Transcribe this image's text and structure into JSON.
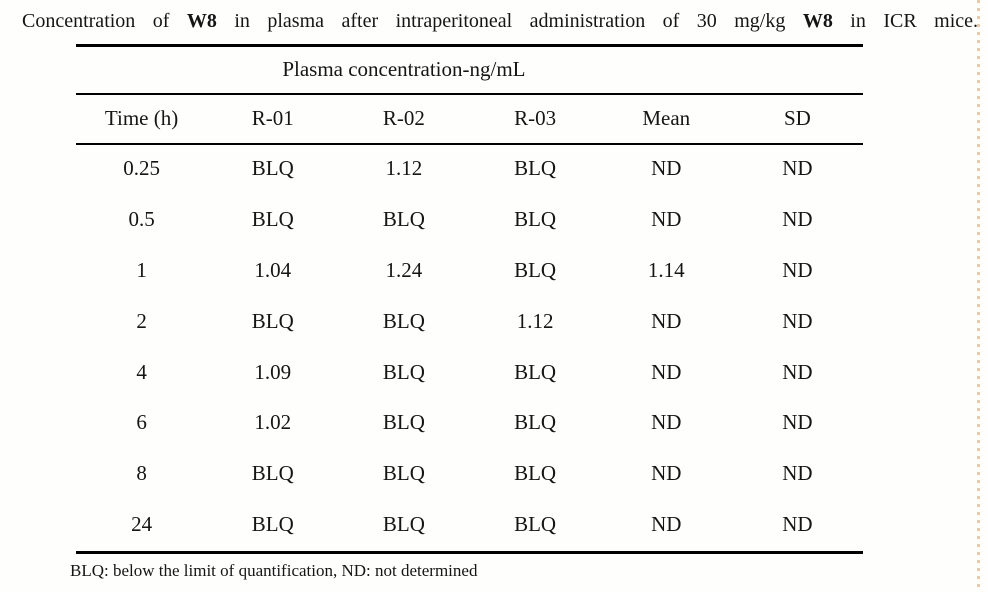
{
  "caption": {
    "segments": [
      "Concentration of ",
      "W8",
      " in plasma after intraperitoneal administration of 30 mg/kg ",
      "W8",
      " in ICR mice."
    ]
  },
  "table": {
    "group_header": "Plasma concentration-ng/mL",
    "headers": [
      "Time (h)",
      "R-01",
      "R-02",
      "R-03",
      "Mean",
      "SD"
    ],
    "rows": [
      [
        "0.25",
        "BLQ",
        "1.12",
        "BLQ",
        "ND",
        "ND"
      ],
      [
        "0.5",
        "BLQ",
        "BLQ",
        "BLQ",
        "ND",
        "ND"
      ],
      [
        "1",
        "1.04",
        "1.24",
        "BLQ",
        "1.14",
        "ND"
      ],
      [
        "2",
        "BLQ",
        "BLQ",
        "1.12",
        "ND",
        "ND"
      ],
      [
        "4",
        "1.09",
        "BLQ",
        "BLQ",
        "ND",
        "ND"
      ],
      [
        "6",
        "1.02",
        "BLQ",
        "BLQ",
        "ND",
        "ND"
      ],
      [
        "8",
        "BLQ",
        "BLQ",
        "BLQ",
        "ND",
        "ND"
      ],
      [
        "24",
        "BLQ",
        "BLQ",
        "BLQ",
        "ND",
        "ND"
      ]
    ]
  },
  "footnote": "BLQ: below the limit of quantification, ND: not determined",
  "colors": {
    "text": "#151515",
    "rule": "#000000",
    "scan_edge_artifact": "#e7cbaa",
    "background": "#fefefd"
  }
}
